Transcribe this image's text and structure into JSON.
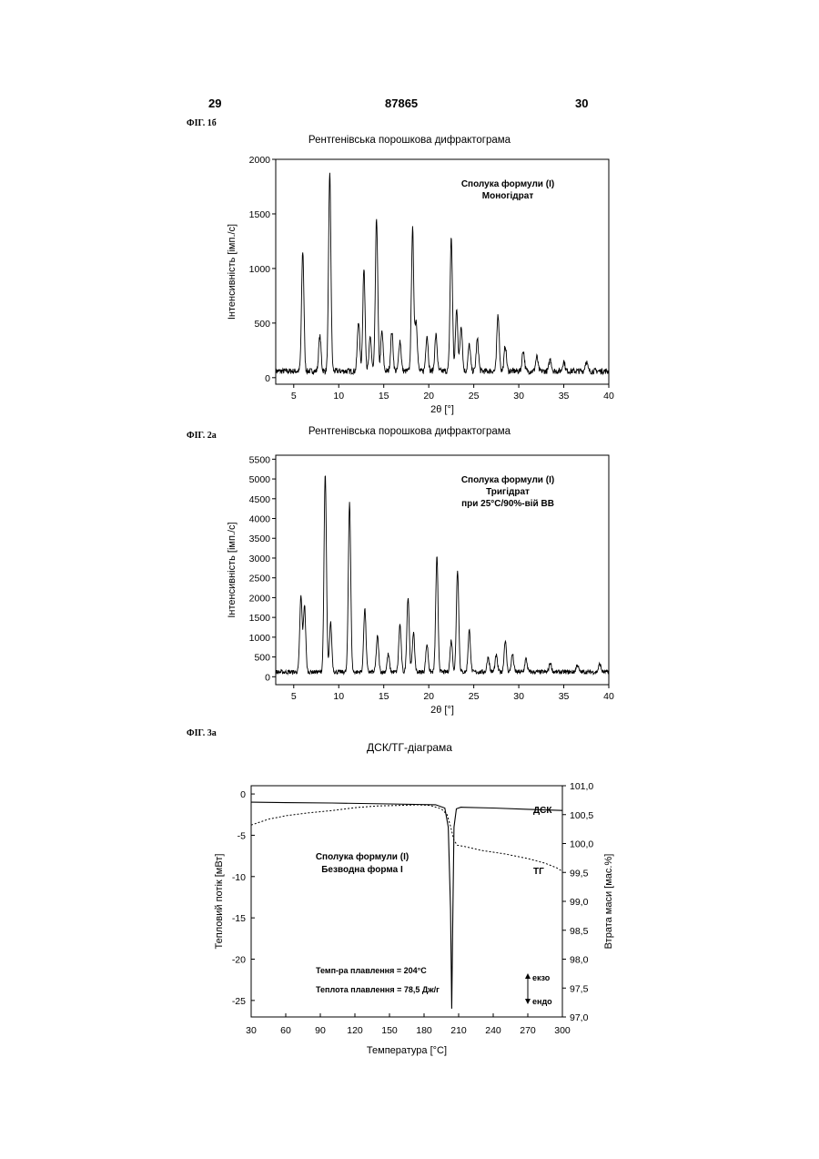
{
  "header": {
    "left": "29",
    "center": "87865",
    "right": "30"
  },
  "figures": [
    {
      "label": "ФІГ. 1б",
      "title": "Рентгенівська порошкова дифрактограма"
    },
    {
      "label": "ФІГ. 2а",
      "title": "Рентгенівська порошкова дифрактограма"
    },
    {
      "label": "ФІГ. 3а",
      "title": "ДСК/ТГ-діаграма"
    }
  ],
  "chart_data": [
    {
      "type": "line",
      "title": "Рентгенівська порошкова дифрактограма",
      "xlabel": "2θ [°]",
      "ylabel": "Інтенсивність [імп./с]",
      "xlim": [
        3,
        40
      ],
      "ylim": [
        -60,
        2000
      ],
      "xticks": [
        5,
        10,
        15,
        20,
        25,
        30,
        35,
        40
      ],
      "yticks": [
        0,
        500,
        1000,
        1500,
        2000
      ],
      "annotation": [
        "Сполука формули (I)",
        "Моногідрат"
      ],
      "baseline": 60,
      "peaks": [
        [
          6.0,
          1100
        ],
        [
          7.9,
          320
        ],
        [
          9.0,
          1830
        ],
        [
          12.2,
          460
        ],
        [
          12.8,
          930
        ],
        [
          13.5,
          310
        ],
        [
          14.2,
          1400
        ],
        [
          14.8,
          360
        ],
        [
          15.9,
          360
        ],
        [
          16.8,
          280
        ],
        [
          18.2,
          1300
        ],
        [
          18.6,
          460
        ],
        [
          19.8,
          330
        ],
        [
          20.8,
          330
        ],
        [
          22.5,
          1220
        ],
        [
          23.1,
          560
        ],
        [
          23.6,
          420
        ],
        [
          24.5,
          240
        ],
        [
          25.4,
          290
        ],
        [
          27.7,
          520
        ],
        [
          28.5,
          230
        ],
        [
          30.5,
          190
        ],
        [
          32.0,
          130
        ],
        [
          33.5,
          110
        ],
        [
          35.0,
          90
        ],
        [
          37.5,
          90
        ]
      ]
    },
    {
      "type": "line",
      "title": "Рентгенівська порошкова дифрактограма",
      "xlabel": "2θ [°]",
      "ylabel": "Інтенсивність [імп./с]",
      "xlim": [
        3,
        40
      ],
      "ylim": [
        -200,
        5600
      ],
      "xticks": [
        5,
        10,
        15,
        20,
        25,
        30,
        35,
        40
      ],
      "yticks": [
        0,
        500,
        1000,
        1500,
        2000,
        2500,
        3000,
        3500,
        4000,
        4500,
        5000,
        5500
      ],
      "annotation": [
        "Сполука формули (I)",
        "Тригідрат",
        "при 25°C/90%-вій ВВ"
      ],
      "baseline": 120,
      "peaks": [
        [
          5.8,
          1900
        ],
        [
          6.2,
          1700
        ],
        [
          8.5,
          5000
        ],
        [
          9.1,
          1250
        ],
        [
          11.2,
          4300
        ],
        [
          12.9,
          1600
        ],
        [
          14.3,
          900
        ],
        [
          15.5,
          450
        ],
        [
          16.8,
          1200
        ],
        [
          17.7,
          1900
        ],
        [
          18.3,
          1000
        ],
        [
          19.8,
          700
        ],
        [
          20.9,
          2900
        ],
        [
          22.5,
          800
        ],
        [
          23.2,
          2600
        ],
        [
          24.5,
          1050
        ],
        [
          26.6,
          380
        ],
        [
          27.5,
          420
        ],
        [
          28.5,
          800
        ],
        [
          29.3,
          450
        ],
        [
          30.8,
          330
        ],
        [
          33.5,
          230
        ],
        [
          36.5,
          180
        ],
        [
          39.0,
          200
        ]
      ]
    },
    {
      "type": "line",
      "title": "ДСК/ТГ-діаграма",
      "xlabel": "Температура [°C]",
      "ylabel": "Тепловий потік [мВт]",
      "y2label": "Втрата маси [мас.%]",
      "xlim": [
        30,
        300
      ],
      "ylim": [
        -27,
        1
      ],
      "y2lim": [
        97.0,
        101.0
      ],
      "xticks": [
        30,
        60,
        90,
        120,
        150,
        180,
        210,
        240,
        270,
        300
      ],
      "yticks": [
        0,
        -5,
        -10,
        -15,
        -20,
        -25
      ],
      "y2ticks": [
        "97,0",
        "97,5",
        "98,0",
        "98,5",
        "99,0",
        "99,5",
        "100,0",
        "100,5",
        "101,0"
      ],
      "annotation": [
        "Сполука формули (I)",
        "Безводна форма І"
      ],
      "notes": [
        "Темп-ра плавлення = 204°C",
        "Теплота плавлення = 78,5 Дж/г"
      ],
      "exo_label": "екзо",
      "endo_label": "ендо",
      "series": [
        {
          "name": "ДСК",
          "axis": "left",
          "x": [
            30,
            60,
            100,
            150,
            190,
            198,
            201,
            203,
            204,
            205,
            206,
            208,
            212,
            240,
            270,
            300
          ],
          "y": [
            -1.0,
            -1.05,
            -1.1,
            -1.2,
            -1.3,
            -1.7,
            -4.0,
            -14.0,
            -26.0,
            -14.0,
            -4.0,
            -1.8,
            -1.6,
            -1.7,
            -1.85,
            -2.0
          ]
        },
        {
          "name": "ТГ",
          "axis": "right",
          "x": [
            30,
            45,
            60,
            80,
            100,
            120,
            140,
            160,
            175,
            185,
            195,
            200,
            203,
            206,
            209,
            215,
            230,
            250,
            270,
            285,
            295,
            300
          ],
          "y": [
            100.32,
            100.42,
            100.48,
            100.53,
            100.57,
            100.62,
            100.65,
            100.66,
            100.67,
            100.66,
            100.6,
            100.5,
            100.3,
            100.05,
            99.97,
            99.95,
            99.88,
            99.82,
            99.74,
            99.66,
            99.58,
            99.52
          ]
        }
      ]
    }
  ]
}
